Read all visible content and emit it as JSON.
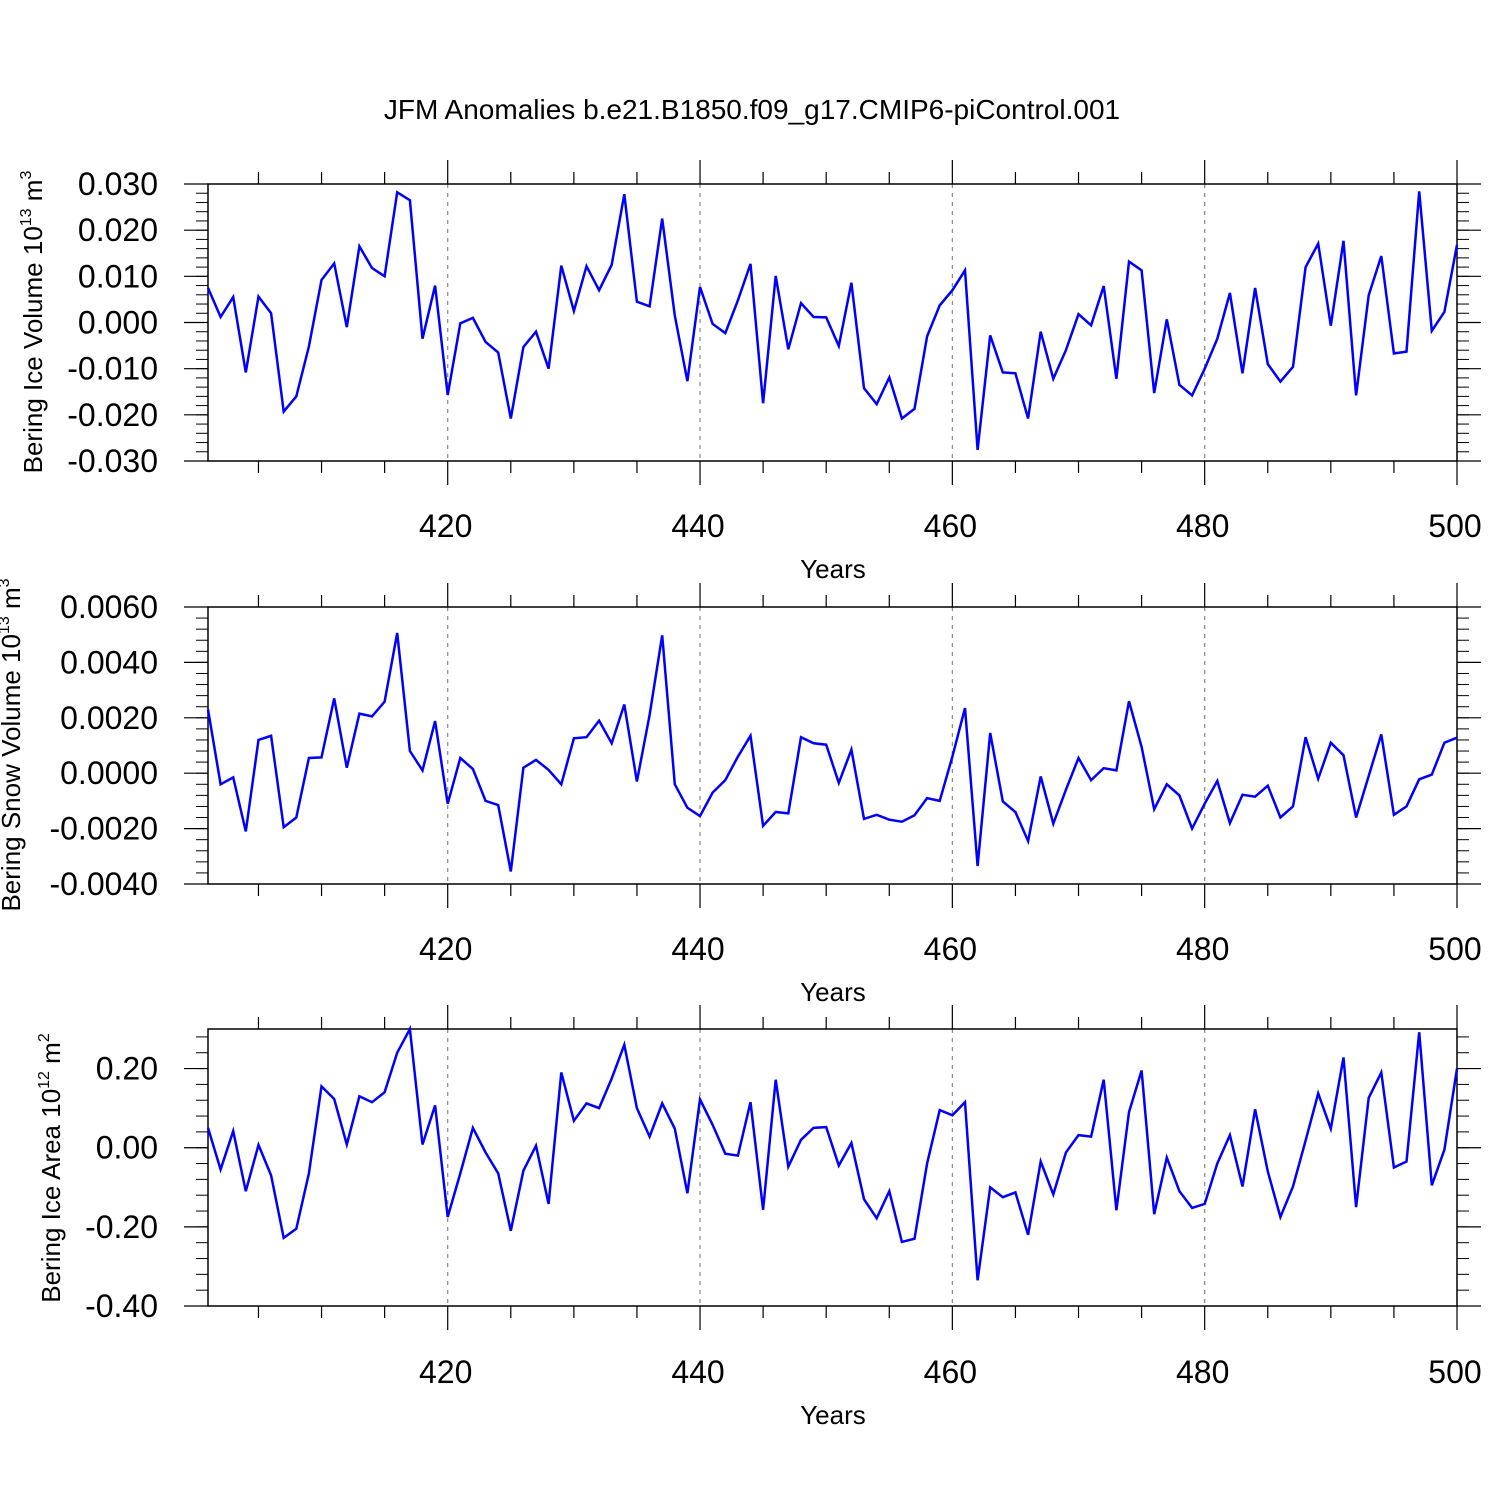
{
  "title": "JFM Anomalies b.e21.B1850.f09_g17.CMIP6-piControl.001",
  "colors": {
    "line": "#0000ff",
    "axis": "#000000",
    "grid": "#888888"
  },
  "chart_data": [
    {
      "type": "line",
      "ylabel": {
        "text": "Bering Ice Volume 10",
        "exp": "13",
        "unit": " m",
        "unit_exp": "3"
      },
      "xlabel": "Years",
      "xlim": [
        401,
        500
      ],
      "ylim": [
        -0.03,
        0.03
      ],
      "x_ticks": [
        420,
        440,
        460,
        480,
        500
      ],
      "y_ticks": [
        -0.03,
        -0.02,
        -0.01,
        0.0,
        0.01,
        0.02,
        0.03
      ],
      "y_tick_labels": [
        "-0.030",
        "-0.020",
        "-0.010",
        "0.000",
        "0.010",
        "0.020",
        "0.030"
      ],
      "grid": "dashed vertical lines at major x ticks",
      "x_start": 401,
      "values": [
        0.0075,
        0.0012,
        0.0055,
        -0.0108,
        0.0056,
        0.002,
        -0.0193,
        -0.016,
        -0.0052,
        0.0092,
        0.0128,
        -0.001,
        0.0165,
        0.0118,
        0.01,
        0.0282,
        0.0265,
        -0.0035,
        0.008,
        -0.0157,
        -0.0002,
        0.001,
        -0.0042,
        -0.0065,
        -0.0208,
        -0.0053,
        -0.002,
        -0.01,
        0.0123,
        0.0025,
        0.0122,
        0.007,
        0.0125,
        0.0278,
        0.0045,
        0.0035,
        0.0225,
        0.0015,
        -0.0127,
        0.0077,
        -0.0003,
        -0.0023,
        0.0048,
        0.0127,
        -0.0175,
        0.0101,
        -0.0058,
        0.0042,
        0.0012,
        0.0011,
        -0.0051,
        0.0086,
        -0.0142,
        -0.0177,
        -0.0119,
        -0.0208,
        -0.0187,
        -0.003,
        0.0037,
        0.007,
        0.0113,
        -0.0276,
        -0.0028,
        -0.0108,
        -0.011,
        -0.0208,
        -0.002,
        -0.0122,
        -0.006,
        0.0018,
        -0.0006,
        0.0079,
        -0.0122,
        0.0132,
        0.0113,
        -0.0153,
        0.0007,
        -0.0135,
        -0.0158,
        -0.01,
        -0.0035,
        0.0064,
        -0.011,
        0.0075,
        -0.009,
        -0.0128,
        -0.0096,
        0.012,
        0.0171,
        -0.0007,
        0.0177,
        -0.0158,
        0.0059,
        0.0144,
        -0.0067,
        -0.0063,
        0.0284,
        -0.0018,
        0.0023,
        0.0168
      ]
    },
    {
      "type": "line",
      "ylabel": {
        "text": "Bering Snow Volume 10",
        "exp": "13",
        "unit": " m",
        "unit_exp": "3"
      },
      "xlabel": "Years",
      "xlim": [
        401,
        500
      ],
      "ylim": [
        -0.004,
        0.006
      ],
      "x_ticks": [
        420,
        440,
        460,
        480,
        500
      ],
      "y_ticks": [
        -0.004,
        -0.002,
        0.0,
        0.002,
        0.004,
        0.006
      ],
      "y_tick_labels": [
        "-0.0040",
        "-0.0020",
        "0.0000",
        "0.0020",
        "0.0040",
        "0.0060"
      ],
      "grid": "dashed vertical lines at major x ticks",
      "x_start": 401,
      "values": [
        0.0023,
        -0.0004,
        -0.00015,
        -0.0021,
        0.0012,
        0.00135,
        -0.00195,
        -0.0016,
        0.00055,
        0.00057,
        0.0027,
        0.0002,
        0.00215,
        0.00205,
        0.00258,
        0.00506,
        0.0008,
        0.0001,
        0.00188,
        -0.0011,
        0.00055,
        0.00015,
        -0.001,
        -0.00115,
        -0.00355,
        0.0002,
        0.00048,
        0.00012,
        -0.0004,
        0.00126,
        0.0013,
        0.0019,
        0.00108,
        0.00248,
        -0.0003,
        0.0021,
        0.00498,
        -0.0004,
        -0.00125,
        -0.00155,
        -0.0007,
        -0.00025,
        0.0006,
        0.00135,
        -0.0019,
        -0.0014,
        -0.00145,
        0.0013,
        0.00108,
        0.00103,
        -0.00035,
        0.00085,
        -0.00165,
        -0.0015,
        -0.00168,
        -0.00175,
        -0.00152,
        -0.0009,
        -0.001,
        0.0006,
        0.00235,
        -0.00335,
        0.00145,
        -0.00102,
        -0.0014,
        -0.00245,
        -0.00012,
        -0.00182,
        -0.0006,
        0.00055,
        -0.00025,
        0.00018,
        0.0001,
        0.0026,
        0.00095,
        -0.0013,
        -0.0004,
        -0.0008,
        -0.002,
        -0.0011,
        -0.00028,
        -0.0018,
        -0.00078,
        -0.00085,
        -0.00045,
        -0.0016,
        -0.0012,
        0.0013,
        -0.0002,
        0.0011,
        0.00065,
        -0.0016,
        -0.0001,
        0.0014,
        -0.0015,
        -0.0012,
        -0.00022,
        -5e-05,
        0.0011,
        0.00128
      ]
    },
    {
      "type": "line",
      "ylabel": {
        "text": "Bering Ice Area 10",
        "exp": "12",
        "unit": " m",
        "unit_exp": "2"
      },
      "xlabel": "Years",
      "xlim": [
        401,
        500
      ],
      "ylim": [
        -0.4,
        0.3
      ],
      "x_ticks": [
        420,
        440,
        460,
        480,
        500
      ],
      "y_ticks": [
        -0.4,
        -0.2,
        0.0,
        0.2
      ],
      "y_tick_labels": [
        "-0.40",
        "-0.20",
        "0.00",
        "0.20"
      ],
      "grid": "dashed vertical lines at major x ticks",
      "x_start": 401,
      "values": [
        0.05,
        -0.055,
        0.042,
        -0.11,
        0.007,
        -0.07,
        -0.228,
        -0.205,
        -0.065,
        0.155,
        0.123,
        0.008,
        0.13,
        0.115,
        0.14,
        0.24,
        0.3,
        0.008,
        0.107,
        -0.175,
        -0.065,
        0.05,
        -0.012,
        -0.065,
        -0.21,
        -0.058,
        0.005,
        -0.142,
        0.19,
        0.068,
        0.112,
        0.1,
        0.175,
        0.26,
        0.1,
        0.028,
        0.112,
        0.048,
        -0.115,
        0.122,
        0.058,
        -0.015,
        -0.02,
        0.115,
        -0.157,
        0.172,
        -0.048,
        0.02,
        0.05,
        0.052,
        -0.045,
        0.012,
        -0.13,
        -0.178,
        -0.11,
        -0.238,
        -0.23,
        -0.04,
        0.095,
        0.082,
        0.115,
        -0.335,
        -0.1,
        -0.125,
        -0.113,
        -0.22,
        -0.035,
        -0.118,
        -0.012,
        0.032,
        0.028,
        0.172,
        -0.158,
        0.09,
        0.195,
        -0.168,
        -0.025,
        -0.11,
        -0.152,
        -0.142,
        -0.04,
        0.032,
        -0.098,
        0.097,
        -0.06,
        -0.175,
        -0.098,
        0.018,
        0.137,
        0.048,
        0.228,
        -0.15,
        0.126,
        0.19,
        -0.05,
        -0.035,
        0.292,
        -0.095,
        -0.005,
        0.2
      ]
    }
  ]
}
